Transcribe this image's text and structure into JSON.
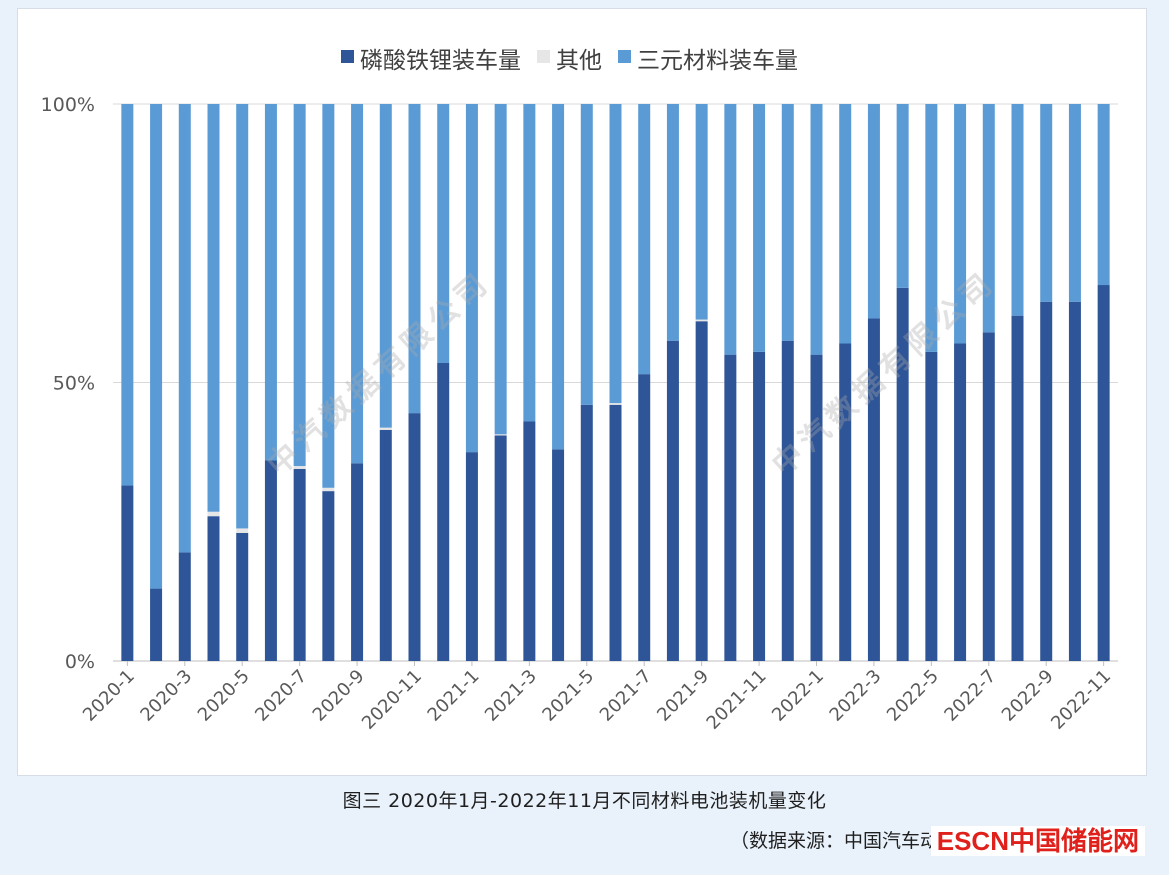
{
  "chart_data": {
    "type": "bar",
    "stacked": true,
    "percent": true,
    "categories": [
      "2020-1",
      "2020-2",
      "2020-3",
      "2020-4",
      "2020-5",
      "2020-6",
      "2020-7",
      "2020-8",
      "2020-9",
      "2020-10",
      "2020-11",
      "2020-12",
      "2021-1",
      "2021-2",
      "2021-3",
      "2021-4",
      "2021-5",
      "2021-6",
      "2021-7",
      "2021-8",
      "2021-9",
      "2021-10",
      "2021-11",
      "2021-12",
      "2022-1",
      "2022-2",
      "2022-3",
      "2022-4",
      "2022-5",
      "2022-6",
      "2022-7",
      "2022-8",
      "2022-9",
      "2022-10",
      "2022-11"
    ],
    "xtick_labels": [
      "2020-1",
      "2020-3",
      "2020-5",
      "2020-7",
      "2020-9",
      "2020-11",
      "2021-1",
      "2021-3",
      "2021-5",
      "2021-7",
      "2021-9",
      "2021-11",
      "2022-1",
      "2022-3",
      "2022-5",
      "2022-7",
      "2022-9",
      "2022-11"
    ],
    "series": [
      {
        "name": "磷酸铁锂装车量",
        "color": "#2e5597",
        "values": [
          31.5,
          13,
          19.5,
          26,
          23,
          36,
          34.5,
          30.5,
          35.5,
          41.5,
          44.5,
          53.5,
          37.5,
          40.5,
          43,
          38,
          46,
          46,
          51.5,
          57.5,
          61,
          55,
          55.5,
          57.5,
          55,
          57,
          61.5,
          67,
          55.5,
          57,
          59,
          62,
          64.5,
          64.5,
          67.5
        ]
      },
      {
        "name": "其他",
        "color": "#e7e6e6",
        "values": [
          0,
          0,
          0,
          0.8,
          0.8,
          0,
          0.5,
          0.6,
          0,
          0.4,
          0,
          0,
          0,
          0.2,
          0,
          0,
          0,
          0.3,
          0,
          0,
          0.3,
          0,
          0,
          0,
          0,
          0,
          0,
          0,
          0,
          0,
          0,
          0,
          0,
          0,
          0
        ]
      },
      {
        "name": "三元材料装车量",
        "color": "#5b9bd5",
        "values": [
          68.5,
          87,
          80.5,
          73.2,
          76.2,
          64,
          65,
          68.9,
          64.5,
          58.1,
          55.5,
          46.5,
          62.5,
          59.3,
          57,
          62,
          54,
          53.7,
          48.5,
          42.5,
          38.7,
          45,
          44.5,
          42.5,
          45,
          43,
          38.5,
          33,
          44.5,
          43,
          41,
          38,
          35.5,
          35.5,
          32.5
        ]
      }
    ],
    "yticks": [
      "0%",
      "50%",
      "100%"
    ],
    "ylim": [
      0,
      100
    ],
    "legend_position": "top-center"
  },
  "watermark": "中汽数据有限公司",
  "caption": "图三  2020年1月-2022年11月不同材料电池装机量变化",
  "source": "（数据来源：中国汽车动力电池产业创新联盟）",
  "logo": "ESCN中国储能网"
}
